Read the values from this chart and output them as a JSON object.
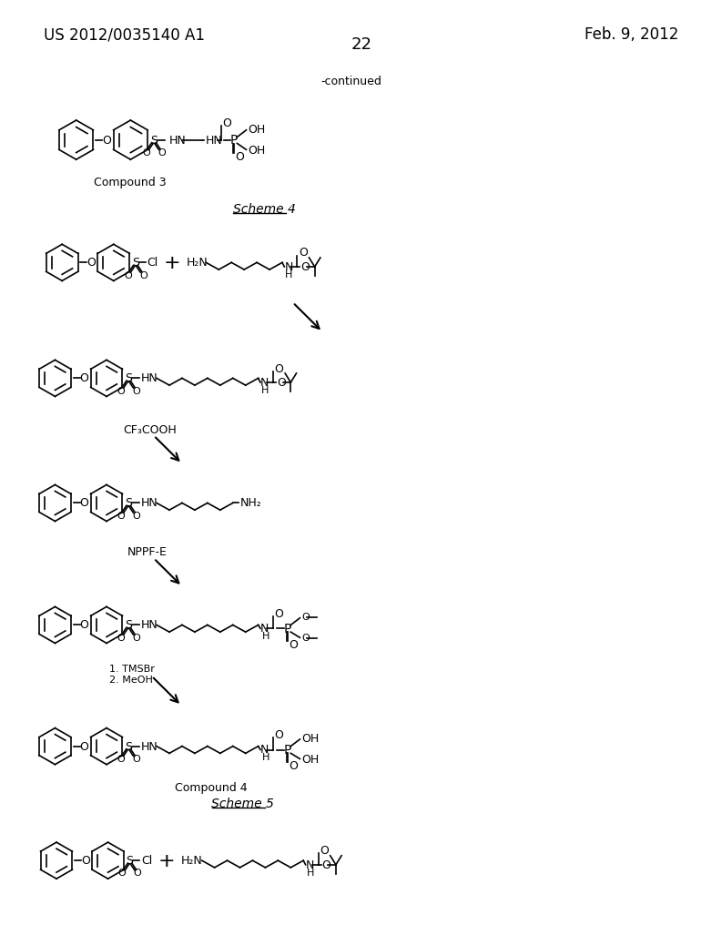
{
  "bg_color": "#ffffff",
  "page_num": "22",
  "header_left": "US 2012/0035140 A1",
  "header_right": "Feb. 9, 2012",
  "continued_label": "-continued",
  "compound3_label": "Compound 3",
  "scheme4_label": "Scheme 4",
  "cf3cooh_label": "CF₃COOH",
  "nppfe_label": "NPPF-E",
  "tmsbr_label": "1. TMSBr\n2. MeOH",
  "compound4_label": "Compound 4",
  "scheme5_label": "Scheme 5",
  "font_size_header": 12,
  "font_size_label": 9,
  "font_size_scheme": 10,
  "font_size_pagenum": 13
}
